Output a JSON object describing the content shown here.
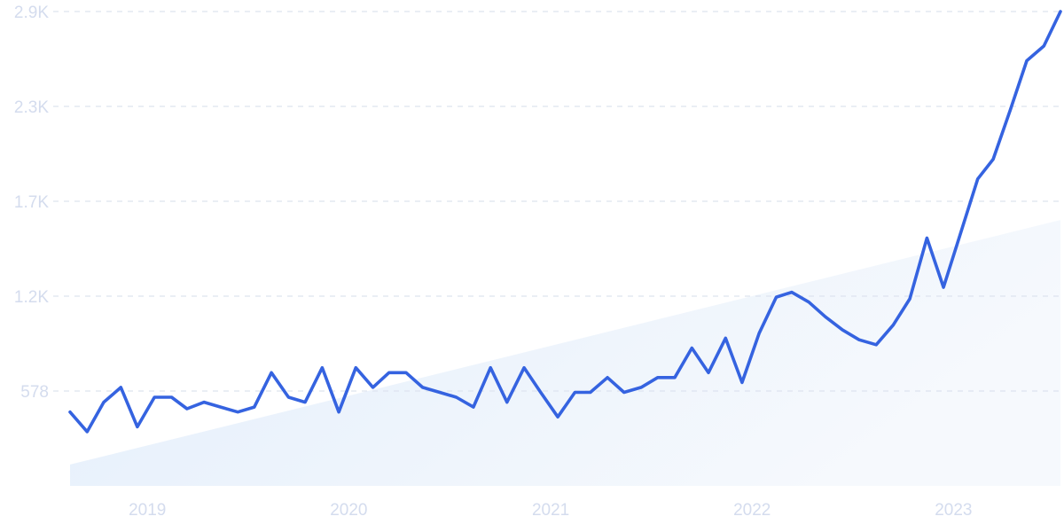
{
  "chart_data": {
    "type": "line",
    "title": "",
    "xlabel": "",
    "ylabel": "",
    "y_ticks": [
      "578",
      "1.2K",
      "1.7K",
      "2.3K",
      "2.9K"
    ],
    "y_tick_values": [
      578,
      1156,
      1734,
      2312,
      2890
    ],
    "ylim": [
      0,
      2890
    ],
    "x_ticks": [
      "2019",
      "2020",
      "2021",
      "2022",
      "2023"
    ],
    "x_tick_dates": [
      "2019-01-01",
      "2020-01-01",
      "2021-01-01",
      "2022-01-01",
      "2023-01-01"
    ],
    "xlim": [
      "2018-08-01",
      "2023-07-01"
    ],
    "grid": "horizontal dashed",
    "legend": "none",
    "colors": {
      "line": "#3563e0",
      "trend_fill": "#e3eefb",
      "grid": "#dde3ee",
      "tick_text": "#d4dcee"
    },
    "trend": {
      "x": [
        "2018-08-01",
        "2023-07-01"
      ],
      "y": [
        130,
        1620
      ]
    },
    "series": [
      {
        "x": [
          "2018-08",
          "2018-09",
          "2018-10",
          "2018-11",
          "2018-12",
          "2019-01",
          "2019-02",
          "2019-03",
          "2019-04",
          "2019-05",
          "2019-06",
          "2019-07",
          "2019-08",
          "2019-09",
          "2019-10",
          "2019-11",
          "2019-12",
          "2020-01",
          "2020-02",
          "2020-03",
          "2020-04",
          "2020-05",
          "2020-06",
          "2020-07",
          "2020-08",
          "2020-09",
          "2020-10",
          "2020-11",
          "2020-12",
          "2021-01",
          "2021-02",
          "2021-03",
          "2021-04",
          "2021-05",
          "2021-06",
          "2021-07",
          "2021-08",
          "2021-09",
          "2021-10",
          "2021-11",
          "2021-12",
          "2022-01",
          "2022-02",
          "2022-03",
          "2022-04",
          "2022-05",
          "2022-06",
          "2022-07",
          "2022-08",
          "2022-09",
          "2022-10",
          "2022-11",
          "2022-12",
          "2023-01",
          "2023-02",
          "2023-03",
          "2023-04",
          "2023-05",
          "2023-06",
          "2023-07"
        ],
        "values": [
          450,
          330,
          510,
          600,
          360,
          540,
          540,
          470,
          510,
          480,
          450,
          480,
          690,
          540,
          510,
          720,
          450,
          720,
          600,
          690,
          690,
          600,
          570,
          540,
          480,
          720,
          510,
          720,
          570,
          420,
          570,
          570,
          660,
          570,
          600,
          660,
          660,
          840,
          690,
          900,
          630,
          930,
          1150,
          1180,
          1120,
          1030,
          950,
          890,
          860,
          980,
          1140,
          1510,
          1210,
          1540,
          1870,
          1990,
          2290,
          2590,
          2680,
          2890
        ]
      }
    ]
  }
}
